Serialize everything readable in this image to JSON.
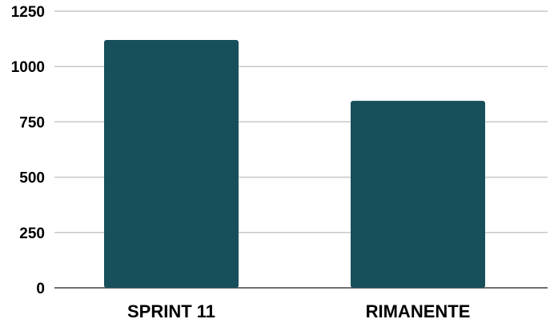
{
  "chart_data": {
    "type": "bar",
    "title": "",
    "xlabel": "",
    "ylabel": "",
    "categories": [
      "SPRINT 11",
      "RIMANENTE"
    ],
    "values": [
      1120,
      845
    ],
    "ylim": [
      0,
      1250
    ],
    "yticks": [
      0,
      250,
      500,
      750,
      1000,
      1250
    ],
    "grid": true,
    "legend": "none",
    "bar_color": "#174f5a"
  }
}
